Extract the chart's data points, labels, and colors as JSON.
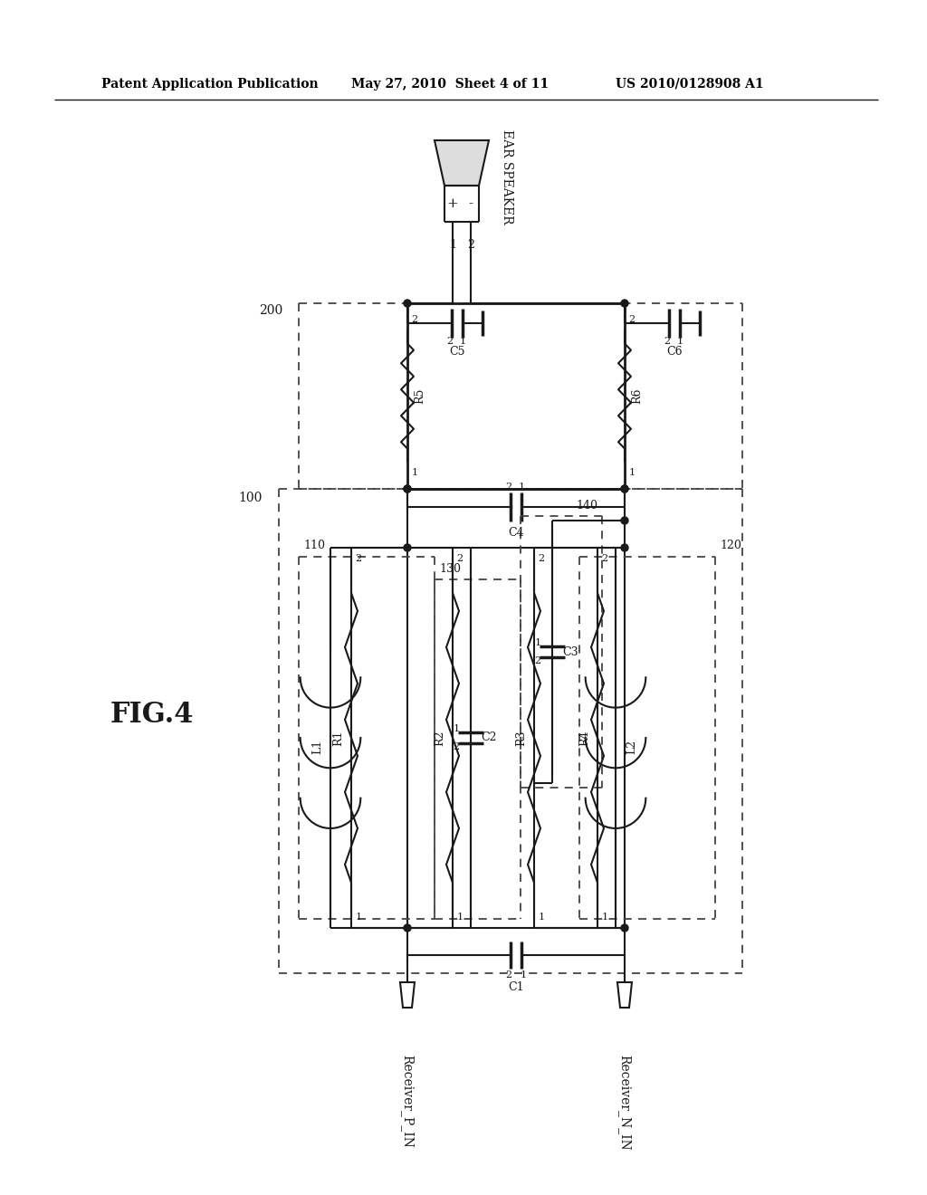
{
  "title_left": "Patent Application Publication",
  "title_mid": "May 27, 2010  Sheet 4 of 11",
  "title_right": "US 2010/0128908 A1",
  "fig_label": "FIG.4",
  "background": "#ffffff",
  "line_color": "#1a1a1a",
  "dashed_color": "#444444"
}
